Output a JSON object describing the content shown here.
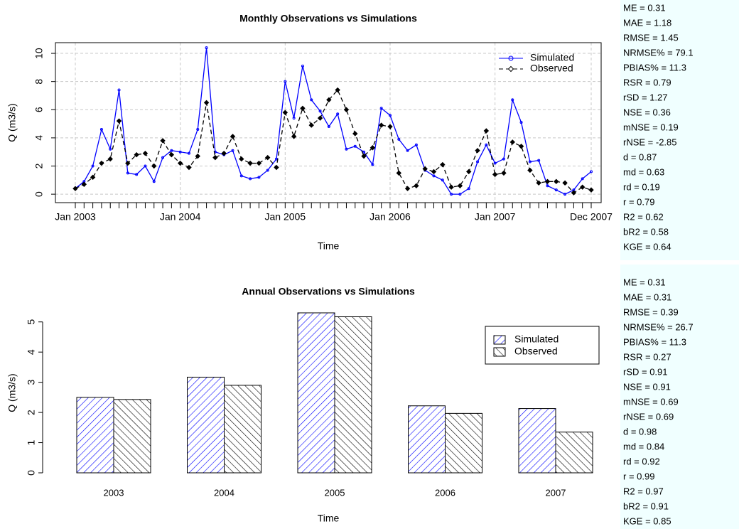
{
  "chart_data": [
    {
      "type": "line",
      "title": "Monthly Observations vs Simulations",
      "xlabel": "Time",
      "ylabel": "Q (m3/s)",
      "categories": [
        "Jan 2003",
        null,
        null,
        null,
        null,
        null,
        null,
        null,
        null,
        null,
        null,
        null,
        "Jan 2004",
        null,
        null,
        null,
        null,
        null,
        null,
        null,
        null,
        null,
        null,
        null,
        "Jan 2005",
        null,
        null,
        null,
        null,
        null,
        null,
        null,
        null,
        null,
        null,
        null,
        "Jan 2006",
        null,
        null,
        null,
        null,
        null,
        null,
        null,
        null,
        null,
        null,
        null,
        "Jan 2007",
        null,
        null,
        null,
        null,
        null,
        null,
        null,
        null,
        null,
        null,
        "Dec 2007"
      ],
      "series": [
        {
          "name": "Simulated",
          "color": "#0000ff",
          "marker": "circle",
          "linestyle": "solid",
          "values": [
            0.4,
            0.9,
            2.0,
            4.6,
            3.2,
            7.4,
            1.5,
            1.4,
            2.0,
            0.9,
            2.6,
            3.1,
            3.0,
            2.9,
            4.6,
            10.4,
            3.0,
            2.8,
            3.1,
            1.3,
            1.1,
            1.2,
            1.7,
            2.5,
            8.0,
            5.4,
            9.1,
            6.7,
            5.9,
            4.8,
            5.7,
            3.2,
            3.4,
            3.0,
            2.1,
            6.1,
            5.6,
            3.9,
            3.1,
            3.5,
            1.7,
            1.3,
            1.0,
            0.0,
            0.0,
            0.4,
            2.3,
            3.5,
            2.2,
            2.5,
            6.7,
            5.1,
            2.3,
            2.4,
            0.6,
            0.3,
            0.0,
            0.3,
            1.1,
            1.6
          ]
        },
        {
          "name": "Observed",
          "color": "#000000",
          "marker": "diamond",
          "linestyle": "dashed",
          "values": [
            0.4,
            0.7,
            1.2,
            2.2,
            2.5,
            5.2,
            2.2,
            2.8,
            2.9,
            2.0,
            3.8,
            2.8,
            2.2,
            1.9,
            2.7,
            6.5,
            2.6,
            2.9,
            4.1,
            2.5,
            2.2,
            2.2,
            2.6,
            1.9,
            5.8,
            4.1,
            6.1,
            4.9,
            5.4,
            6.7,
            7.4,
            6.0,
            4.3,
            2.7,
            3.3,
            4.9,
            4.8,
            1.5,
            0.4,
            0.6,
            1.8,
            1.6,
            2.1,
            0.5,
            0.6,
            1.6,
            3.1,
            4.5,
            1.4,
            1.5,
            3.7,
            3.4,
            1.7,
            0.8,
            0.9,
            0.9,
            0.8,
            0.1,
            0.5,
            0.3
          ]
        }
      ],
      "ylim": [
        -0.6,
        10.76
      ],
      "yticks": [
        0,
        2,
        4,
        6,
        8,
        10
      ],
      "grid": true,
      "legend": "topright",
      "stats": [
        "ME = 0.31",
        "MAE = 1.18",
        "RMSE = 1.45",
        "NRMSE% = 79.1",
        "PBIAS% = 11.3",
        "RSR = 0.79",
        "rSD = 1.27",
        "NSE = 0.36",
        "mNSE = 0.19",
        "rNSE = -2.85",
        "d = 0.87",
        "md = 0.63",
        "rd = 0.19",
        "r = 0.79",
        "R2 = 0.62",
        "bR2 = 0.58",
        "KGE = 0.64"
      ]
    },
    {
      "type": "bar",
      "title": "Annual Observations vs Simulations",
      "xlabel": "Time",
      "ylabel": "Q (m3/s)",
      "categories": [
        "2003",
        "2004",
        "2005",
        "2006",
        "2007"
      ],
      "series": [
        {
          "name": "Simulated",
          "color": "#0000ff",
          "hatch": "/",
          "values": [
            2.5,
            3.17,
            5.3,
            2.22,
            2.13
          ]
        },
        {
          "name": "Observed",
          "color": "#000000",
          "hatch": "\\",
          "values": [
            2.43,
            2.9,
            5.17,
            1.97,
            1.35
          ]
        }
      ],
      "ylim": [
        0,
        5.3
      ],
      "yticks": [
        0,
        1,
        2,
        3,
        4,
        5
      ],
      "legend": "topright",
      "stats": [
        "ME = 0.31",
        "MAE = 0.31",
        "RMSE = 0.39",
        "NRMSE% = 26.7",
        "PBIAS% = 11.3",
        "RSR = 0.27",
        "rSD = 0.91",
        "NSE = 0.91",
        "mNSE = 0.69",
        "rNSE = 0.69",
        "d = 0.98",
        "md = 0.84",
        "rd = 0.92",
        "r = 0.99",
        "R2 = 0.97",
        "bR2 = 0.91",
        "KGE = 0.85"
      ]
    }
  ]
}
